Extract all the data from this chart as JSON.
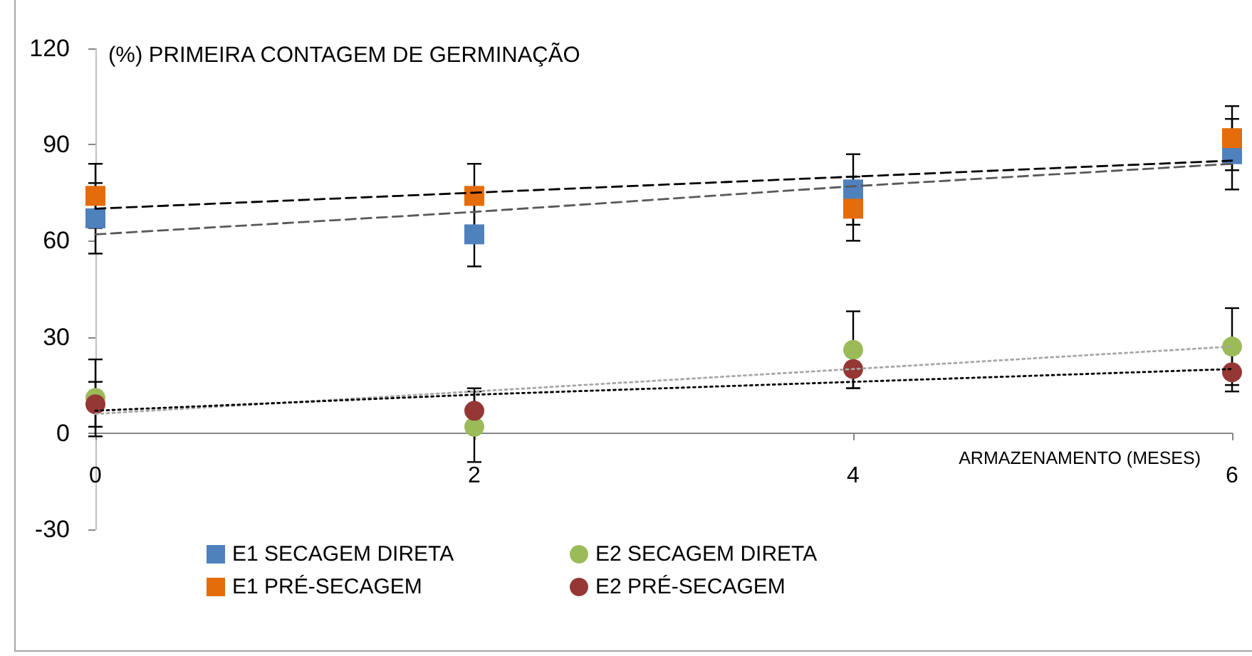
{
  "chart_data": {
    "type": "scatter",
    "title": "(%) PRIMEIRA CONTAGEM DE GERMINAÇÃO",
    "xlabel": "ARMAZENAMENTO (MESES)",
    "x": [
      0,
      2,
      4,
      6
    ],
    "series": [
      {
        "name": "E1 SECAGEM DIRETA",
        "color": "#4f81bd",
        "marker": "square",
        "values": [
          67,
          62,
          76,
          87
        ],
        "errors": [
          11,
          10,
          11,
          11
        ]
      },
      {
        "name": "E1 PRÉ-SECAGEM",
        "color": "#e46c0a",
        "marker": "square",
        "values": [
          74,
          74,
          70,
          92
        ],
        "errors": [
          10,
          10,
          10,
          10
        ]
      },
      {
        "name": "E2 SECAGEM DIRETA",
        "color": "#9bbb59",
        "marker": "circle",
        "values": [
          11,
          2,
          26,
          27
        ],
        "errors": [
          12,
          11,
          12,
          12
        ]
      },
      {
        "name": "E2 PRÉ-SECAGEM",
        "color": "#953735",
        "marker": "circle",
        "values": [
          9,
          7,
          20,
          19
        ],
        "errors": [
          7,
          7,
          6,
          6
        ]
      },
      {
        "type": "line",
        "values": [
          62,
          69,
          77,
          84
        ],
        "color": "#595959",
        "line_style": "dashed",
        "marker": "none"
      },
      {
        "type": "line",
        "values": [
          70,
          75,
          80,
          85
        ],
        "color": "#000000",
        "line_style": "dashed",
        "marker": "none"
      },
      {
        "type": "line",
        "values": [
          6,
          13,
          20,
          27
        ],
        "color": "#a6a6a6",
        "line_style": "dotted",
        "marker": "none"
      },
      {
        "type": "line",
        "values": [
          7,
          12,
          16,
          20
        ],
        "color": "#000000",
        "line_style": "dotted",
        "marker": "none"
      }
    ],
    "xlim": [
      0,
      6
    ],
    "xticks": [
      0,
      2,
      4,
      6
    ],
    "ylim": [
      -30,
      120
    ],
    "yticks": [
      -30,
      0,
      30,
      60,
      90,
      120
    ],
    "grid": false,
    "legend": "bottom"
  }
}
